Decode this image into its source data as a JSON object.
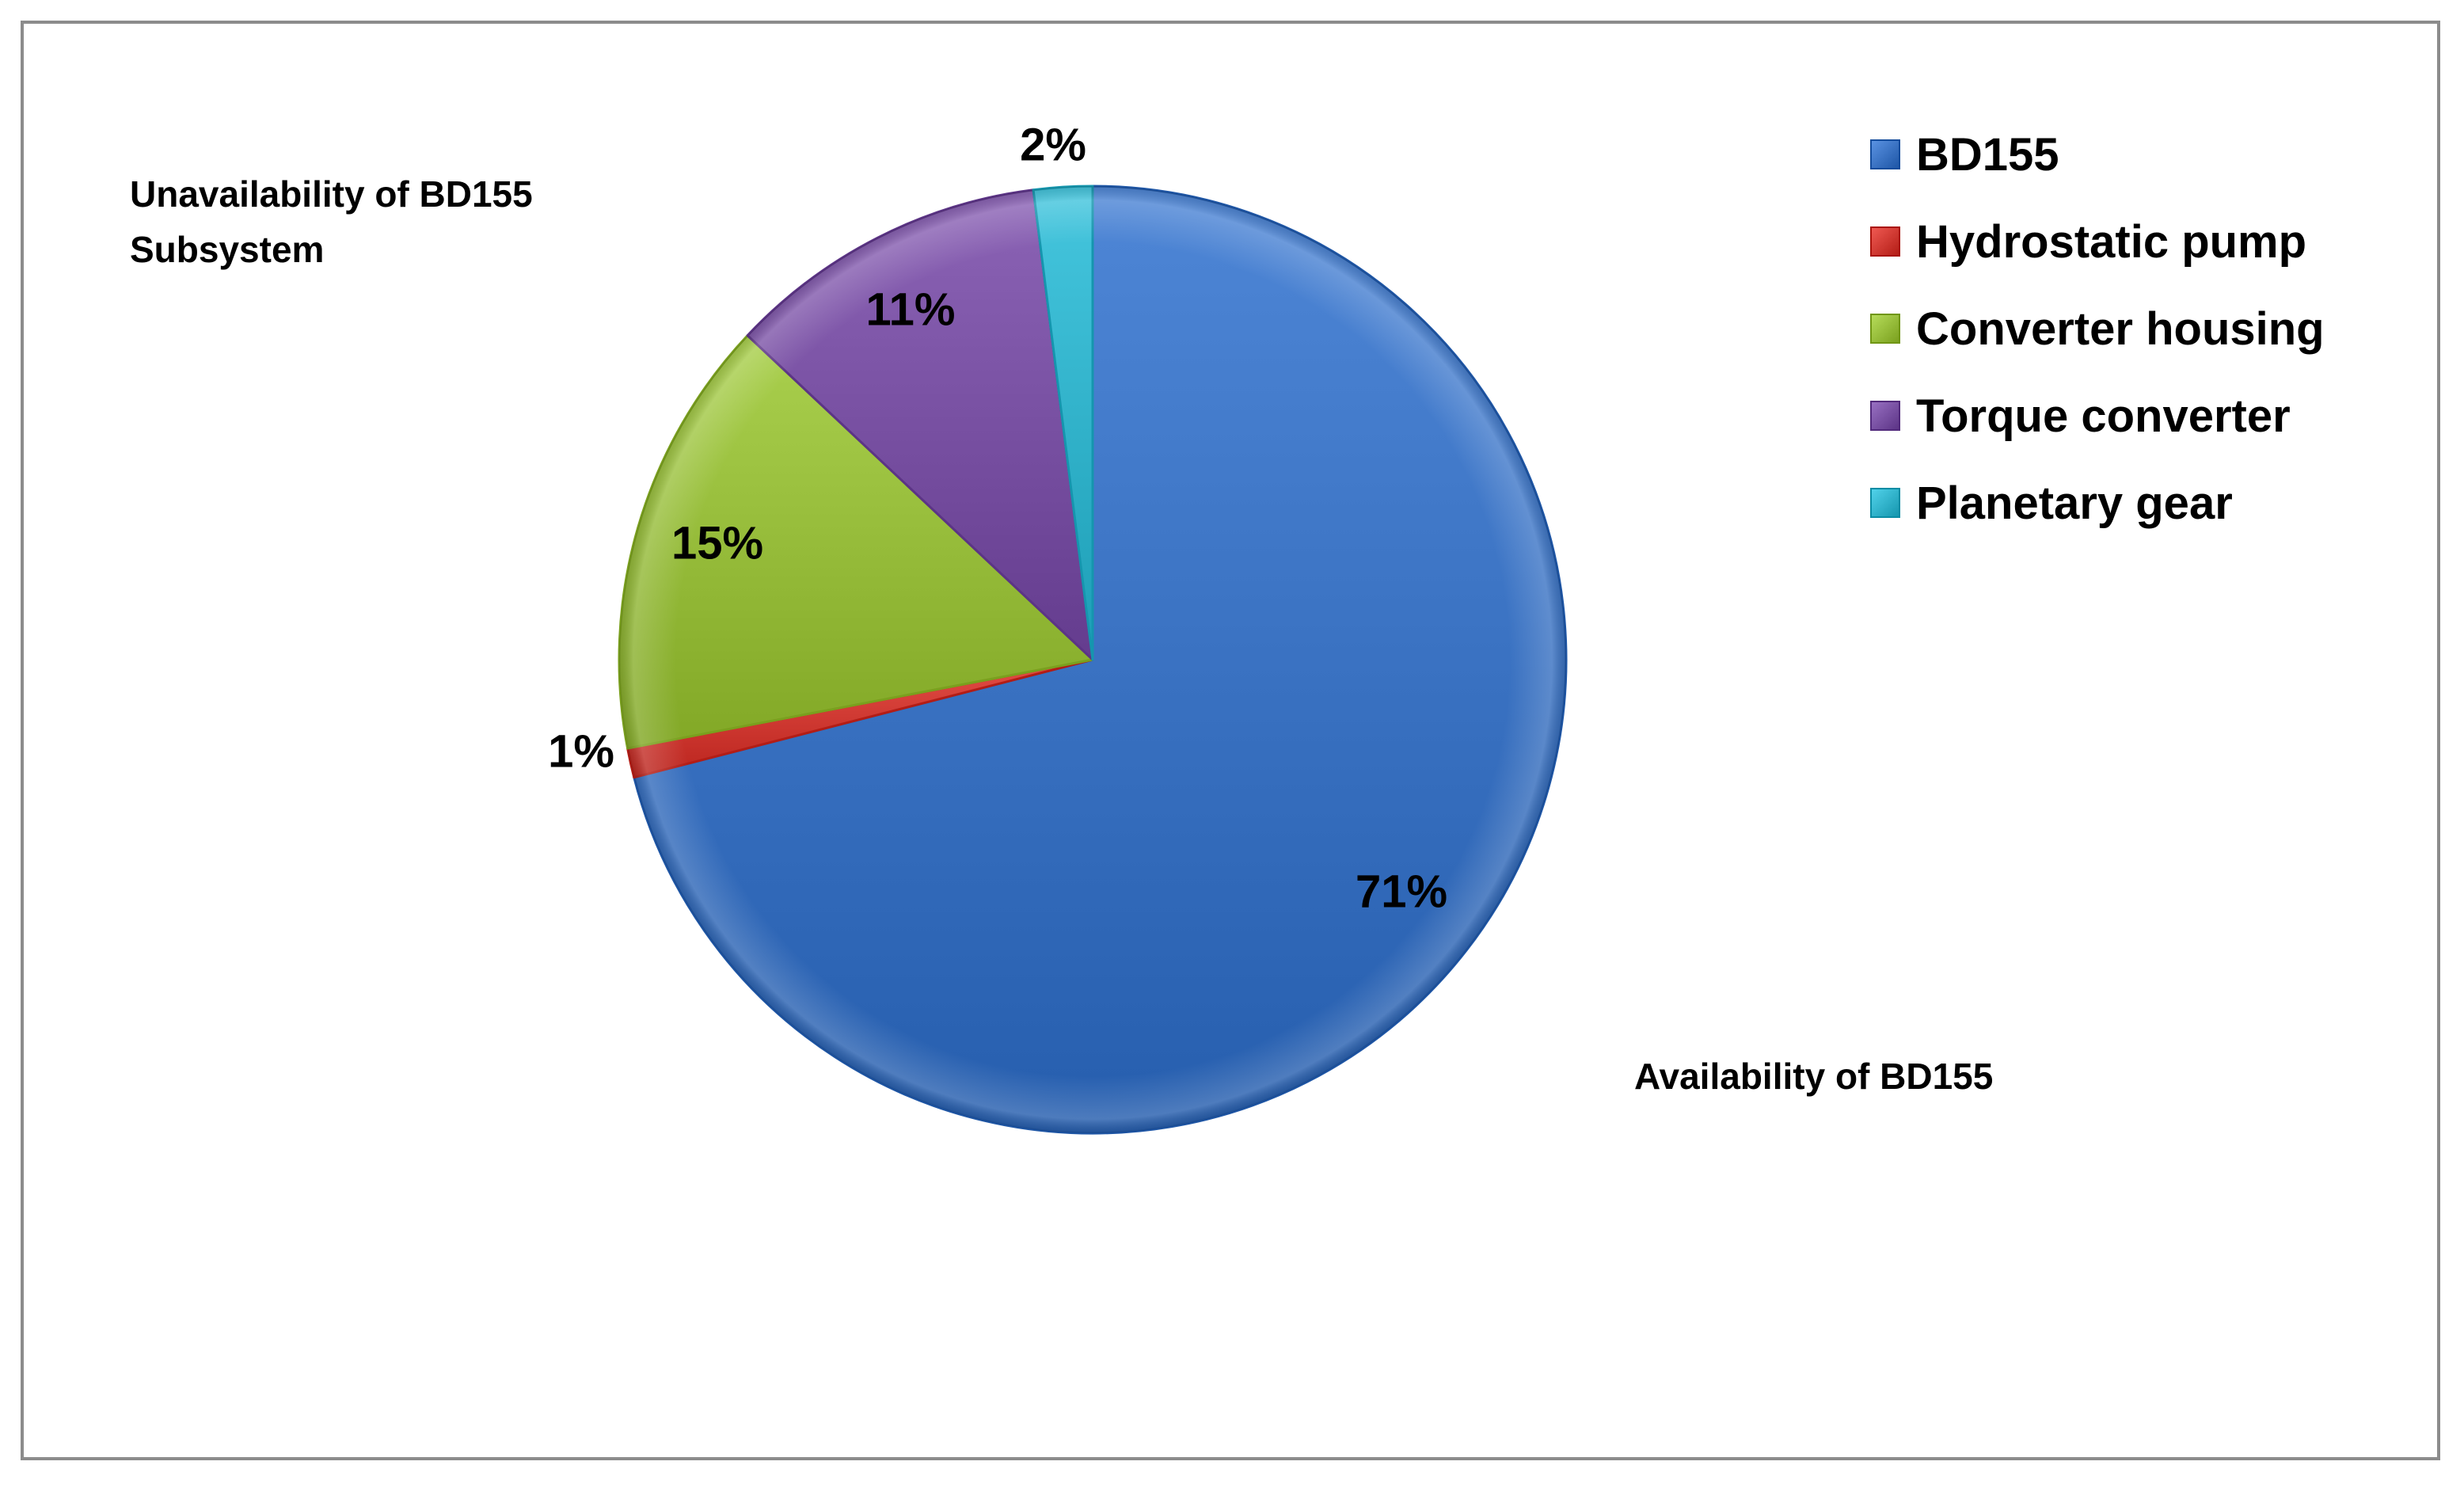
{
  "chart_data": {
    "type": "pie",
    "title": "",
    "categories": [
      "BD155",
      "Hydrostatic pump",
      "Converter housing",
      "Torque converter",
      "Planetary gear"
    ],
    "values": [
      71,
      1,
      15,
      11,
      2
    ],
    "value_labels": [
      "71%",
      "1%",
      "15%",
      "11%",
      "2%"
    ],
    "colors": [
      "#3c74c4",
      "#d13b34",
      "#98be3c",
      "#7a52a4",
      "#33b4cc"
    ],
    "start_angle_deg": 0,
    "direction": "clockwise",
    "legend_position": "top-right",
    "annotations": {
      "unavailability": "Unavailability of  BD155 Subsystem",
      "availability": "Availability  of  BD155"
    }
  }
}
